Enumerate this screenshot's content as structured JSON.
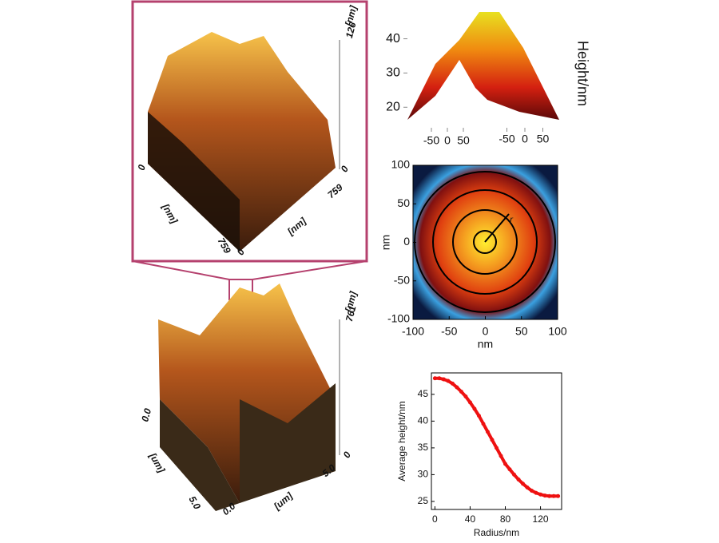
{
  "afm_zoom": {
    "z_unit": "[nm]",
    "z_max": "126",
    "z_min": "0",
    "left_unit": "[nm]",
    "left_max": "759",
    "left_min": "0",
    "right_unit": "[nm]",
    "right_max": "759",
    "right_min": "0"
  },
  "afm_full": {
    "z_unit": "[nm]",
    "z_max": "761",
    "z_min": "0",
    "left_unit": "[um]",
    "left_min": "0.0",
    "left_max": "5.0",
    "right_unit": "[um]",
    "right_min": "0.0",
    "right_max": "5.0"
  },
  "chart_data": [
    {
      "type": "surface",
      "zlabel": "Height/nm",
      "zlim": [
        14,
        49
      ],
      "zticks": [
        20,
        30,
        40
      ],
      "xticks": [
        -50,
        0,
        50
      ],
      "yticks": [
        -50,
        0,
        50
      ]
    },
    {
      "type": "heatmap",
      "xlabel": "nm",
      "ylabel": "nm",
      "annotation": "r",
      "xlim": [
        -100,
        100
      ],
      "ylim": [
        -100,
        100
      ],
      "xticks": [
        -100,
        -50,
        0,
        50,
        100
      ],
      "yticks": [
        -100,
        -50,
        0,
        50,
        100
      ]
    },
    {
      "type": "line",
      "xlabel": "Radius/nm",
      "ylabel": "Average height/nm",
      "xlim": [
        -4,
        144
      ],
      "ylim": [
        23.5,
        49
      ],
      "xticks": [
        0,
        40,
        80,
        120
      ],
      "yticks": [
        25,
        30,
        35,
        40,
        45
      ],
      "x": [
        0,
        5,
        10,
        15,
        20,
        25,
        30,
        35,
        40,
        45,
        50,
        55,
        60,
        65,
        70,
        75,
        80,
        85,
        90,
        95,
        100,
        105,
        110,
        115,
        120,
        125,
        130,
        135,
        140
      ],
      "series": [
        {
          "color": "#ee1111",
          "values": [
            48,
            48,
            47.8,
            47.5,
            47,
            46.3,
            45.5,
            44.6,
            43.5,
            42.3,
            41,
            39.5,
            38,
            36.5,
            35,
            33.5,
            32,
            31,
            30,
            29.1,
            28.3,
            27.6,
            27,
            26.6,
            26.3,
            26.1,
            26,
            26,
            26
          ]
        }
      ]
    }
  ]
}
